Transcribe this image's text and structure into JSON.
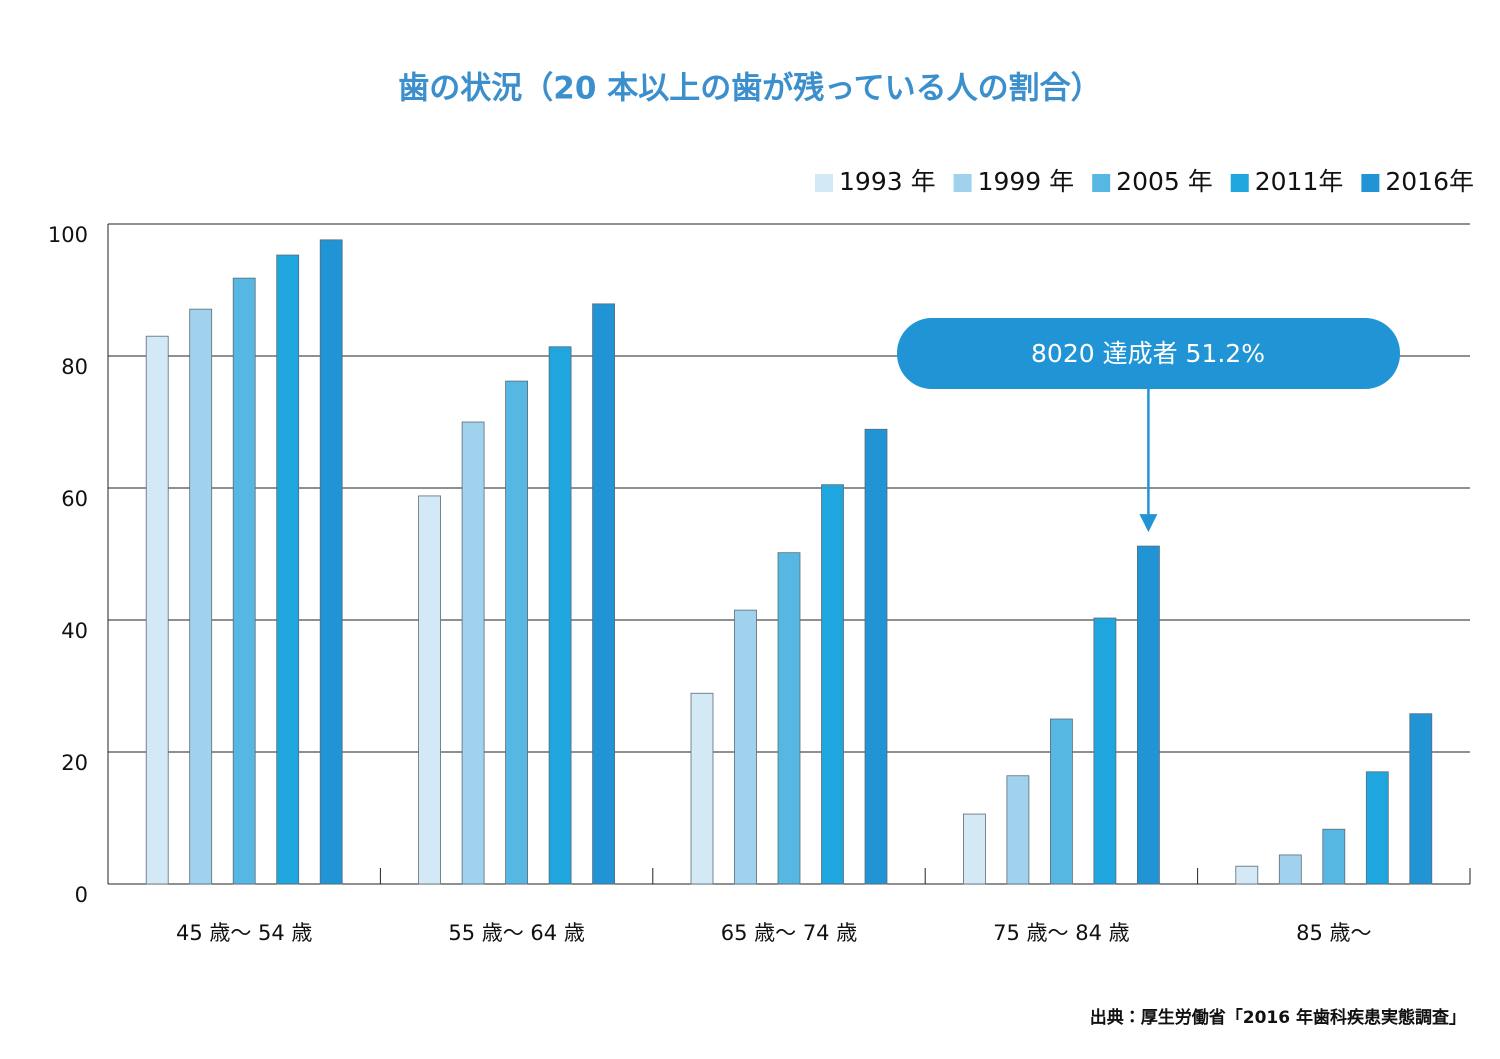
{
  "chart_data": {
    "type": "bar",
    "title": "歯の状況（20 本以上の歯が残っている人の割合）",
    "categories": [
      "45 歳〜 54 歳",
      "55 歳〜 64 歳",
      "65 歳〜 74 歳",
      "75 歳〜 84 歳",
      "85 歳〜"
    ],
    "series": [
      {
        "name": "1993 年",
        "color": "#d3e9f6",
        "values": [
          83.0,
          58.8,
          28.9,
          10.6,
          2.7
        ]
      },
      {
        "name": "1999 年",
        "color": "#a0d2ee",
        "values": [
          87.1,
          70.0,
          41.5,
          16.4,
          4.4
        ]
      },
      {
        "name": "2005 年",
        "color": "#57b7e3",
        "values": [
          91.8,
          76.2,
          50.2,
          25.0,
          8.3
        ]
      },
      {
        "name": "2011年",
        "color": "#1fa6df",
        "values": [
          95.3,
          81.4,
          60.5,
          40.3,
          17.0
        ]
      },
      {
        "name": "2016年",
        "color": "#2194d5",
        "values": [
          97.6,
          87.9,
          68.9,
          51.2,
          25.8
        ]
      }
    ],
    "ylim": [
      0,
      100
    ],
    "yticks": [
      0,
      20,
      40,
      60,
      80,
      100
    ],
    "grid": true,
    "legend": "top-right",
    "annotation": "8020 達成者 51.2%",
    "source": "出典：厚生労働省「2016 年歯科疾患実態調査」"
  }
}
